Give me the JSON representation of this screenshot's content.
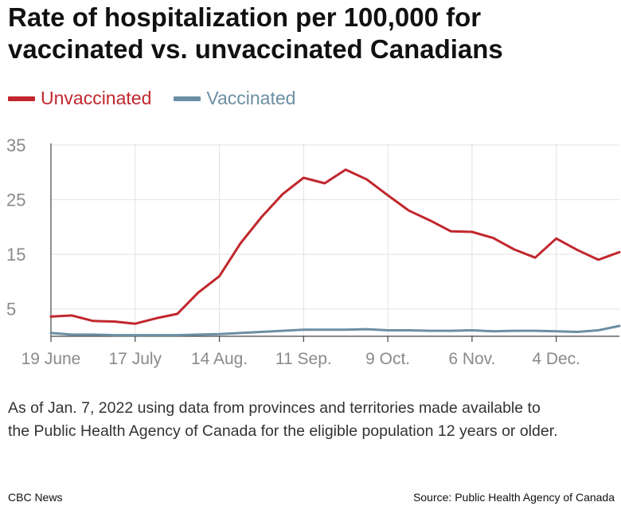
{
  "title": "Rate of hospitalization per 100,000 for vaccinated vs. unvaccinated Canadians",
  "note": "As of Jan. 7, 2022 using data from provinces and territories made available to the Public Health Agency of Canada for the eligible population 12 years or older.",
  "footer": {
    "credit": "CBC News",
    "source": "Source: Public Health Agency of Canada"
  },
  "chart_data": {
    "type": "line",
    "title": "Rate of hospitalization per 100,000 for vaccinated vs. unvaccinated Canadians",
    "xlabel": "",
    "ylabel": "",
    "x": [
      "2021-06-19",
      "2021-06-26",
      "2021-07-03",
      "2021-07-10",
      "2021-07-17",
      "2021-07-24",
      "2021-07-31",
      "2021-08-07",
      "2021-08-14",
      "2021-08-21",
      "2021-08-28",
      "2021-09-04",
      "2021-09-11",
      "2021-09-18",
      "2021-09-25",
      "2021-10-02",
      "2021-10-09",
      "2021-10-16",
      "2021-10-23",
      "2021-10-30",
      "2021-11-06",
      "2021-11-13",
      "2021-11-20",
      "2021-11-27",
      "2021-12-04",
      "2021-12-11",
      "2021-12-18",
      "2021-12-25"
    ],
    "x_ticks": [
      {
        "x": "2021-06-19",
        "label": "19 June"
      },
      {
        "x": "2021-07-17",
        "label": "17 July"
      },
      {
        "x": "2021-08-14",
        "label": "14 Aug."
      },
      {
        "x": "2021-09-11",
        "label": "11 Sep."
      },
      {
        "x": "2021-10-09",
        "label": "9 Oct."
      },
      {
        "x": "2021-11-06",
        "label": "6 Nov."
      },
      {
        "x": "2021-12-04",
        "label": "4 Dec."
      }
    ],
    "y_ticks": [
      5,
      15,
      25,
      35
    ],
    "ylim": [
      0,
      35
    ],
    "grid": true,
    "legend_position": "top-left",
    "series": [
      {
        "name": "Unvaccinated",
        "color": "#c1272d",
        "values": [
          3.6,
          3.8,
          2.8,
          2.7,
          2.3,
          3.3,
          4.1,
          8,
          11,
          17,
          21.8,
          26,
          29,
          28,
          30.5,
          28.7,
          25.8,
          23,
          21.2,
          19.2,
          19.1,
          18,
          15.9,
          14.4,
          17.9,
          15.8,
          14,
          15.4
        ]
      },
      {
        "name": "Vaccinated",
        "color": "#6b8fa3",
        "values": [
          0.6,
          0.3,
          0.3,
          0.2,
          0.2,
          0.2,
          0.2,
          0.3,
          0.4,
          0.6,
          0.8,
          1.0,
          1.2,
          1.2,
          1.2,
          1.3,
          1.1,
          1.1,
          1.0,
          1.0,
          1.1,
          0.9,
          1.0,
          1.0,
          0.9,
          0.8,
          1.1,
          1.9
        ]
      }
    ]
  }
}
